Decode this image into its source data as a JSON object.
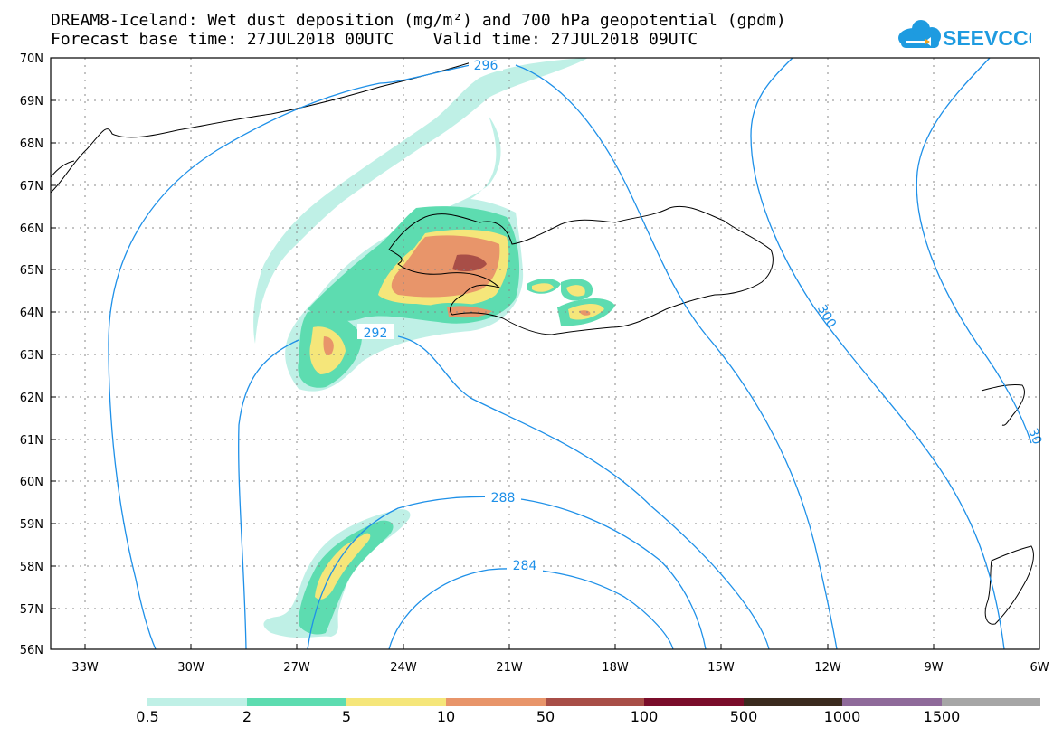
{
  "header": {
    "title_line1": "DREAM8-Iceland: Wet dust deposition (mg/m²) and 700 hPa geopotential (gpdm)",
    "title_line2": "Forecast base time: 27JUL2018 00UTC    Valid time: 27JUL2018 09UTC"
  },
  "logo": {
    "text": "SEEVCCC",
    "icon": "cloud-icon",
    "color": "#1e9be0",
    "accent": "#f2a31b"
  },
  "map": {
    "lat_labels": [
      "70N",
      "69N",
      "68N",
      "67N",
      "66N",
      "65N",
      "64N",
      "63N",
      "62N",
      "61N",
      "60N",
      "59N",
      "58N",
      "57N",
      "56N"
    ],
    "lon_labels": [
      "33W",
      "30W",
      "27W",
      "24W",
      "21W",
      "18W",
      "15W",
      "12W",
      "9W",
      "6W"
    ],
    "contour_labels": [
      "296",
      "292",
      "288",
      "284",
      "300",
      "30"
    ],
    "contour_color": "#1e90e8"
  },
  "legend": {
    "colors": [
      "#bff0e6",
      "#5ddcb0",
      "#f5e67a",
      "#e8956a",
      "#a84e47",
      "#7a0d2a",
      "#3b2a1e",
      "#8f6a9a",
      "#a6a6a6"
    ],
    "labels": [
      "0.5",
      "2",
      "5",
      "10",
      "50",
      "100",
      "500",
      "1000",
      "1500"
    ]
  }
}
